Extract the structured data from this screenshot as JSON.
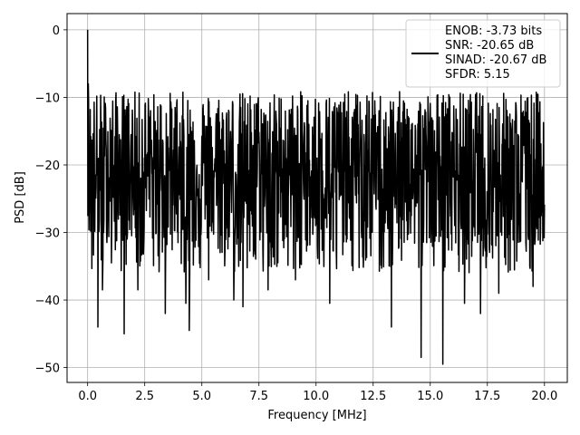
{
  "chart_data": {
    "type": "line",
    "title": "",
    "xlabel": "Frequency [MHz]",
    "ylabel": "PSD [dB]",
    "xlim": [
      -0.9,
      21.0
    ],
    "ylim": [
      -52.2,
      2.4
    ],
    "x_ticks": [
      0.0,
      2.5,
      5.0,
      7.5,
      10.0,
      12.5,
      15.0,
      17.5,
      20.0
    ],
    "x_tick_labels": [
      "0.0",
      "2.5",
      "5.0",
      "7.5",
      "10.0",
      "12.5",
      "15.0",
      "17.5",
      "20.0"
    ],
    "y_ticks": [
      0,
      -10,
      -20,
      -30,
      -40,
      -50
    ],
    "y_tick_labels": [
      "0",
      "−10",
      "−20",
      "−30",
      "−40",
      "−50"
    ],
    "grid": true,
    "legend_position": "upper right",
    "legend_lines": [
      "ENOB: -3.73 bits",
      "SNR: -20.65 dB",
      "SINAD: -20.67 dB",
      "SFDR: 5.15"
    ],
    "series": [
      {
        "color": "#000000",
        "x_range": [
          0.0,
          20.0
        ],
        "peak": {
          "x": 0.0,
          "y": 0.0
        },
        "envelope": {
          "upper": -9.0,
          "median": -20.5,
          "lower": -31.0
        },
        "notable_dips": [
          {
            "x": 0.45,
            "y": -44.0
          },
          {
            "x": 0.65,
            "y": -38.5
          },
          {
            "x": 1.6,
            "y": -45.0
          },
          {
            "x": 2.2,
            "y": -38.5
          },
          {
            "x": 3.4,
            "y": -42.0
          },
          {
            "x": 4.3,
            "y": -40.5
          },
          {
            "x": 4.45,
            "y": -44.5
          },
          {
            "x": 5.3,
            "y": -37.0
          },
          {
            "x": 6.4,
            "y": -40.0
          },
          {
            "x": 6.8,
            "y": -41.0
          },
          {
            "x": 7.9,
            "y": -38.5
          },
          {
            "x": 9.1,
            "y": -37.0
          },
          {
            "x": 10.6,
            "y": -40.5
          },
          {
            "x": 13.3,
            "y": -44.0
          },
          {
            "x": 14.6,
            "y": -48.5
          },
          {
            "x": 15.55,
            "y": -49.5
          },
          {
            "x": 16.5,
            "y": -40.5
          },
          {
            "x": 17.2,
            "y": -42.0
          },
          {
            "x": 18.0,
            "y": -39.0
          },
          {
            "x": 19.5,
            "y": -38.0
          }
        ]
      }
    ]
  }
}
